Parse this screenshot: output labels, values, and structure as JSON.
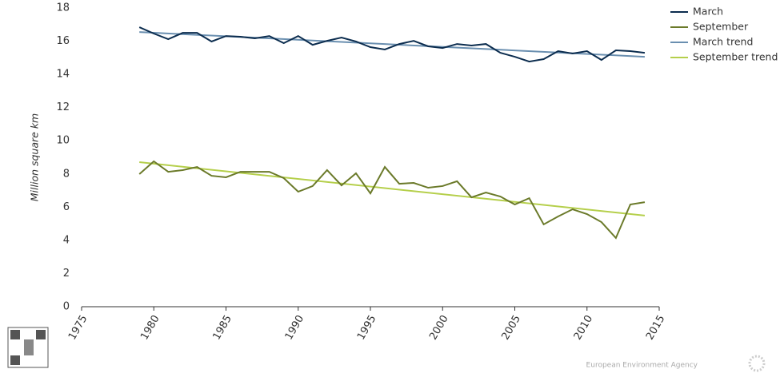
{
  "chart_data": {
    "type": "line",
    "y_label": "Million square km",
    "x": [
      1979,
      1980,
      1981,
      1982,
      1983,
      1984,
      1985,
      1986,
      1987,
      1988,
      1989,
      1990,
      1991,
      1992,
      1993,
      1994,
      1995,
      1996,
      1997,
      1998,
      1999,
      2000,
      2001,
      2002,
      2003,
      2004,
      2005,
      2006,
      2007,
      2008,
      2009,
      2010,
      2011,
      2012,
      2013,
      2014
    ],
    "series": [
      {
        "name": "March",
        "color": "#0c2d4f",
        "values": [
          16.84,
          16.46,
          16.12,
          16.5,
          16.5,
          15.98,
          16.31,
          16.27,
          16.17,
          16.31,
          15.88,
          16.31,
          15.78,
          16.02,
          16.22,
          15.98,
          15.64,
          15.5,
          15.83,
          16.02,
          15.69,
          15.59,
          15.83,
          15.74,
          15.83,
          15.3,
          15.06,
          14.77,
          14.92,
          15.4,
          15.26,
          15.4,
          14.87,
          15.45,
          15.4,
          15.3
        ]
      },
      {
        "name": "September",
        "color": "#6b7a2a",
        "values": [
          7.99,
          8.76,
          8.13,
          8.23,
          8.42,
          7.89,
          7.8,
          8.13,
          8.13,
          8.13,
          7.75,
          6.93,
          7.27,
          8.23,
          7.31,
          8.04,
          6.83,
          8.42,
          7.41,
          7.46,
          7.17,
          7.27,
          7.56,
          6.59,
          6.88,
          6.64,
          6.16,
          6.54,
          4.96,
          5.44,
          5.87,
          5.58,
          5.1,
          4.14,
          6.16,
          6.3
        ]
      },
      {
        "name": "March trend",
        "color": "#6a8fb0",
        "x": [
          1979,
          2014
        ],
        "values": [
          16.55,
          15.06
        ]
      },
      {
        "name": "September trend",
        "color": "#b5cf4b",
        "x": [
          1979,
          2014
        ],
        "values": [
          8.71,
          5.49
        ]
      }
    ],
    "xlim": [
      1975,
      2015
    ],
    "xticks": [
      1975,
      1980,
      1985,
      1990,
      1995,
      2000,
      2005,
      2010,
      2015
    ],
    "ylim": [
      0,
      18
    ],
    "yticks": [
      0,
      2,
      4,
      6,
      8,
      10,
      12,
      14,
      16,
      18
    ],
    "grid": false,
    "legend": "top-right"
  },
  "footer": "European Environment Agency"
}
